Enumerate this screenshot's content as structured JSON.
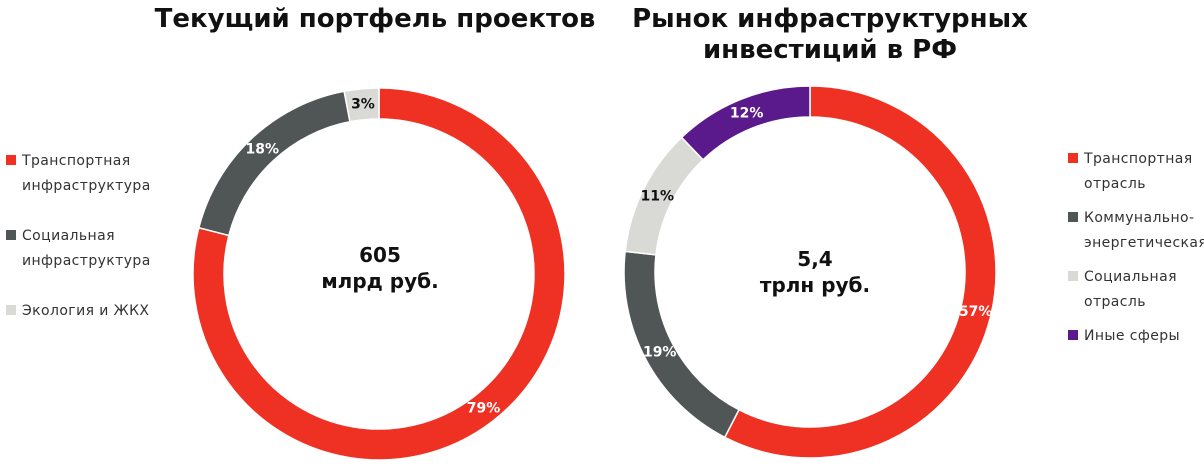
{
  "chart_data": [
    {
      "type": "pie",
      "title": "Текущий портфель проектов",
      "center": {
        "value": "605",
        "unit": "млрд руб."
      },
      "slices": [
        {
          "label": "Транспортная инфраструктура",
          "legend_lines": [
            "Транспортная",
            "инфраструктура"
          ],
          "value": 79,
          "value_label": "79%",
          "color": "#ef3124",
          "label_color": "#ffffff"
        },
        {
          "label": "Социальная инфраструктура",
          "legend_lines": [
            "Социальная",
            "инфраструктура"
          ],
          "value": 18,
          "value_label": "18%",
          "color": "#505556",
          "label_color": "#ffffff"
        },
        {
          "label": "Экология и ЖКХ",
          "legend_lines": [
            "Экология и ЖКХ"
          ],
          "value": 3,
          "value_label": "3%",
          "color": "#d9d9d6",
          "label_color": "#111111"
        }
      ],
      "legend": "left",
      "start_slice": 0,
      "direction": "clockwise"
    },
    {
      "type": "pie",
      "title": "Рынок инфраструктурных инвестиций в РФ",
      "center": {
        "value": "5,4",
        "unit": "трлн руб."
      },
      "slices": [
        {
          "label": "Транспортная отрасль",
          "legend_lines": [
            "Транспортная",
            "отрасль"
          ],
          "value": 57,
          "value_label": "57%",
          "color": "#ef3124",
          "label_color": "#ffffff"
        },
        {
          "label": "Коммунально-энергетическая",
          "legend_lines": [
            "Коммунально-",
            "энергетическая"
          ],
          "value": 19,
          "value_label": "19%",
          "color": "#505556",
          "label_color": "#ffffff"
        },
        {
          "label": "Социальная отрасль",
          "legend_lines": [
            "Социальная",
            "отрасль"
          ],
          "value": 11,
          "value_label": "11%",
          "color": "#d9d9d6",
          "label_color": "#111111"
        },
        {
          "label": "Иные сферы",
          "legend_lines": [
            "Иные сферы"
          ],
          "value": 12,
          "value_label": "12%",
          "color": "#5b1a8b",
          "label_color": "#ffffff"
        }
      ],
      "legend": "right",
      "start_slice": 0,
      "direction": "clockwise"
    }
  ]
}
